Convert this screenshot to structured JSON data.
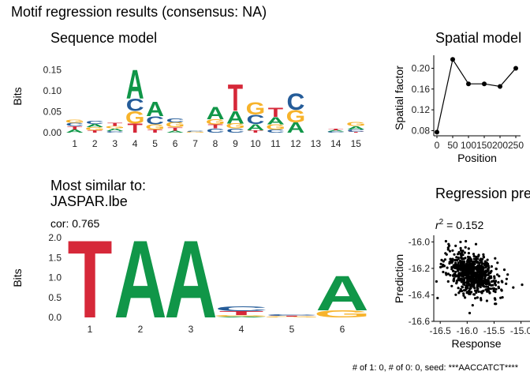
{
  "figure_title": "Motif regression results (consensus: NA)",
  "footer": "# of 1: 0, # of 0: 0, seed: ***AACCATCT****",
  "colors": {
    "A": "#109648",
    "C": "#255C99",
    "G": "#F7B32B",
    "T": "#D62839"
  },
  "chart_data": [
    {
      "type": "sequence-logo",
      "title": "Sequence model",
      "ylabel": "Bits",
      "ylim": [
        0,
        0.2
      ],
      "yticks": [
        "0.00",
        "0.05",
        "0.10",
        "0.15"
      ],
      "ytick_values": [
        0,
        0.05,
        0.1,
        0.15
      ],
      "positions": [
        "1",
        "2",
        "3",
        "4",
        "5",
        "6",
        "7",
        "8",
        "9",
        "10",
        "11",
        "12",
        "13",
        "14",
        "15"
      ],
      "stacks": [
        [
          [
            "A",
            0.008
          ],
          [
            "T",
            0.008
          ],
          [
            "C",
            0.008
          ],
          [
            "G",
            0.008
          ]
        ],
        [
          [
            "T",
            0.006
          ],
          [
            "G",
            0.007
          ],
          [
            "A",
            0.008
          ],
          [
            "C",
            0.008
          ]
        ],
        [
          [
            "C",
            0.004
          ],
          [
            "A",
            0.006
          ],
          [
            "G",
            0.006
          ],
          [
            "T",
            0.008
          ]
        ],
        [
          [
            "T",
            0.022
          ],
          [
            "G",
            0.03
          ],
          [
            "C",
            0.03
          ],
          [
            "A",
            0.07
          ]
        ],
        [
          [
            "T",
            0.008
          ],
          [
            "G",
            0.012
          ],
          [
            "C",
            0.02
          ],
          [
            "A",
            0.035
          ]
        ],
        [
          [
            "A",
            0.005
          ],
          [
            "T",
            0.008
          ],
          [
            "G",
            0.012
          ],
          [
            "C",
            0.01
          ]
        ],
        [
          [
            "G",
            0.002
          ],
          [
            "C",
            0.002
          ]
        ],
        [
          [
            "C",
            0.01
          ],
          [
            "T",
            0.01
          ],
          [
            "G",
            0.012
          ],
          [
            "A",
            0.03
          ]
        ],
        [
          [
            "C",
            0.01
          ],
          [
            "G",
            0.012
          ],
          [
            "A",
            0.03
          ],
          [
            "T",
            0.065
          ]
        ],
        [
          [
            "T",
            0.006
          ],
          [
            "A",
            0.015
          ],
          [
            "C",
            0.022
          ],
          [
            "G",
            0.03
          ]
        ],
        [
          [
            "C",
            0.008
          ],
          [
            "G",
            0.012
          ],
          [
            "A",
            0.018
          ],
          [
            "T",
            0.022
          ]
        ],
        [
          [
            "A",
            0.025
          ],
          [
            "G",
            0.03
          ],
          [
            "C",
            0.04
          ]
        ],
        [],
        [
          [
            "C",
            0.003
          ],
          [
            "A",
            0.003
          ],
          [
            "T",
            0.003
          ]
        ],
        [
          [
            "T",
            0.002
          ],
          [
            "C",
            0.006
          ],
          [
            "A",
            0.008
          ],
          [
            "G",
            0.01
          ]
        ]
      ]
    },
    {
      "type": "line",
      "title": "Spatial model",
      "xlabel": "Position",
      "ylabel": "Spatial factor",
      "x": [
        0,
        50,
        100,
        150,
        200,
        250
      ],
      "values": [
        0.077,
        0.217,
        0.17,
        0.17,
        0.165,
        0.2
      ],
      "xlim": [
        -10,
        265
      ],
      "ylim": [
        0.07,
        0.225
      ],
      "xticks": [
        "0",
        "50",
        "100",
        "150",
        "200",
        "250"
      ],
      "xtick_values": [
        0,
        50,
        100,
        150,
        200,
        250
      ],
      "yticks": [
        "0.08",
        "0.12",
        "0.16",
        "0.20"
      ],
      "ytick_values": [
        0.08,
        0.12,
        0.16,
        0.2
      ]
    },
    {
      "type": "sequence-logo",
      "title": "Most similar to:",
      "subtitle": "JASPAR.lbe",
      "annotation": "cor: 0.765",
      "ylabel": "Bits",
      "ylim": [
        0,
        2.1
      ],
      "yticks": [
        "0.0",
        "0.5",
        "1.0",
        "1.5",
        "2.0"
      ],
      "ytick_values": [
        0,
        0.5,
        1.0,
        1.5,
        2.0
      ],
      "positions": [
        "1",
        "2",
        "3",
        "4",
        "5",
        "6"
      ],
      "stacks": [
        [
          [
            "T",
            2.0
          ]
        ],
        [
          [
            "A",
            2.0
          ]
        ],
        [
          [
            "A",
            2.0
          ]
        ],
        [
          [
            "A",
            0.02
          ],
          [
            "G",
            0.04
          ],
          [
            "T",
            0.1
          ],
          [
            "C",
            0.12
          ]
        ],
        [
          [
            "G",
            0.02
          ],
          [
            "T",
            0.02
          ],
          [
            "C",
            0.04
          ]
        ],
        [
          [
            "G",
            0.18
          ],
          [
            "A",
            0.9
          ]
        ]
      ]
    },
    {
      "type": "scatter",
      "title": "Regression pre",
      "annotation": "r² = 0.152",
      "xlabel": "Response",
      "ylabel": "Prediction",
      "xlim": [
        -16.62,
        -14.95
      ],
      "ylim": [
        -16.6,
        -15.98
      ],
      "xticks": [
        "-16.5",
        "-16.0",
        "-15.5",
        "-15.0"
      ],
      "xtick_values": [
        -16.5,
        -16.0,
        -15.5,
        -15.0
      ],
      "yticks": [
        "-16.0",
        "-16.2",
        "-16.4",
        "-16.6"
      ],
      "ytick_values": [
        -16.0,
        -16.2,
        -16.4,
        -16.6
      ],
      "n_points": 700,
      "center": [
        -15.9,
        -16.24
      ],
      "spread": [
        0.24,
        0.075
      ],
      "slope": -0.12
    }
  ]
}
